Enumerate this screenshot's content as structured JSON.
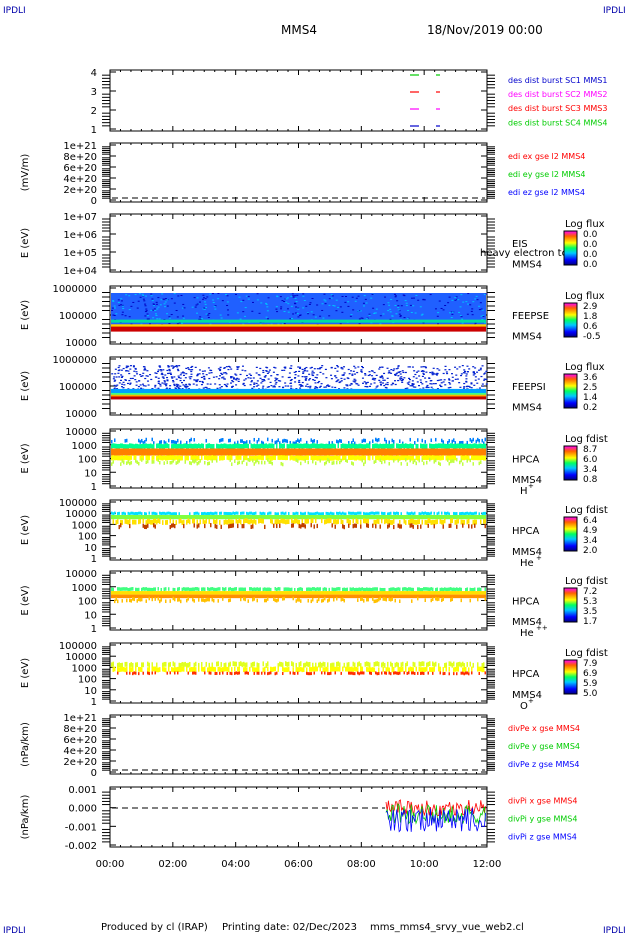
{
  "header": {
    "corner_label": "IPDLI",
    "spacecraft": "MMS4",
    "datetime": "18/Nov/2019 00:00"
  },
  "footer": {
    "produced_by": "Produced by cl (IRAP)",
    "printing_date": "Printing date: 02/Dec/2023",
    "script_name": "mms_mms4_srvy_vue_web2.cl"
  },
  "colors": {
    "mms1": "#0000ff",
    "mms2": "#ff00ff",
    "mms3": "#ff0000",
    "mms4": "#00cc00",
    "x": "#ff0000",
    "y": "#00cc00",
    "z": "#0000ff"
  },
  "chart_data": [
    {
      "type": "line",
      "ylabel": "",
      "yticks": [
        "4",
        "3",
        "2",
        "1"
      ],
      "legend": [
        {
          "name": "des dist burst SC1 MMS1",
          "color": "#0000cc"
        },
        {
          "name": "des dist burst SC2 MMS2",
          "color": "#ff00ff"
        },
        {
          "name": "des dist burst SC3 MMS3",
          "color": "#ff0000"
        },
        {
          "name": "des dist burst SC4 MMS4",
          "color": "#00cc00"
        }
      ]
    },
    {
      "type": "line",
      "ylabel": "(mV/m)",
      "yticks": [
        "1e+21",
        "8e+20",
        "6e+20",
        "4e+20",
        "2e+20",
        "0"
      ],
      "legend": [
        {
          "name": "edi ex gse l2 MMS4",
          "color": "#ff0000"
        },
        {
          "name": "edi ey gse l2 MMS4",
          "color": "#00cc00"
        },
        {
          "name": "edi ez gse l2 MMS4",
          "color": "#0000ff"
        }
      ]
    },
    {
      "type": "heatmap",
      "ylabel": "E (eV)",
      "yticks": [
        "1e+07",
        "1e+06",
        "1e+05",
        "1e+04"
      ],
      "instrument": "EIS",
      "note": "heavy electron to",
      "sc": "MMS4",
      "colorbar_title": "Log flux",
      "colorbar_ticks": [
        "0.0",
        "0.0",
        "0.0",
        "0.0"
      ]
    },
    {
      "type": "heatmap",
      "ylabel": "E (eV)",
      "yticks": [
        "1000000",
        "100000",
        "10000"
      ],
      "instrument": "FEEPSE",
      "sc": "MMS4",
      "colorbar_title": "Log flux",
      "colorbar_ticks": [
        "2.9",
        "1.8",
        "0.6",
        "-0.5"
      ]
    },
    {
      "type": "heatmap",
      "ylabel": "E (eV)",
      "yticks": [
        "1000000",
        "100000",
        "10000"
      ],
      "instrument": "FEEPSI",
      "sc": "MMS4",
      "colorbar_title": "Log flux",
      "colorbar_ticks": [
        "3.6",
        "2.5",
        "1.4",
        "0.2"
      ]
    },
    {
      "type": "heatmap",
      "ylabel": "E (eV)",
      "yticks": [
        "10000",
        "1000",
        "100",
        "10",
        "1"
      ],
      "instrument": "HPCA",
      "sc": "MMS4",
      "species": "H",
      "charge": "+",
      "colorbar_title": "Log fdist",
      "colorbar_ticks": [
        "8.7",
        "6.0",
        "3.4",
        "0.8"
      ]
    },
    {
      "type": "heatmap",
      "ylabel": "E (eV)",
      "yticks": [
        "100000",
        "10000",
        "1000",
        "100",
        "10",
        "1"
      ],
      "instrument": "HPCA",
      "sc": "MMS4",
      "species": "He",
      "charge": "+",
      "colorbar_title": "Log fdist",
      "colorbar_ticks": [
        "6.4",
        "4.9",
        "3.4",
        "2.0"
      ]
    },
    {
      "type": "heatmap",
      "ylabel": "E (eV)",
      "yticks": [
        "10000",
        "1000",
        "100",
        "10",
        "1"
      ],
      "instrument": "HPCA",
      "sc": "MMS4",
      "species": "He",
      "charge": "++",
      "colorbar_title": "Log fdist",
      "colorbar_ticks": [
        "7.2",
        "5.3",
        "3.5",
        "1.7"
      ]
    },
    {
      "type": "heatmap",
      "ylabel": "E (eV)",
      "yticks": [
        "100000",
        "10000",
        "1000",
        "100",
        "10",
        "1"
      ],
      "instrument": "HPCA",
      "sc": "MMS4",
      "species": "O",
      "charge": "+",
      "colorbar_title": "Log fdist",
      "colorbar_ticks": [
        "7.9",
        "6.9",
        "5.9",
        "5.0"
      ]
    },
    {
      "type": "line",
      "ylabel": "(nPa/km)",
      "yticks": [
        "1e+21",
        "8e+20",
        "6e+20",
        "4e+20",
        "2e+20",
        "0"
      ],
      "legend": [
        {
          "name": "divPe x gse MMS4",
          "color": "#ff0000"
        },
        {
          "name": "divPe y gse MMS4",
          "color": "#00cc00"
        },
        {
          "name": "divPe z gse MMS4",
          "color": "#0000ff"
        }
      ]
    },
    {
      "type": "line",
      "ylabel": "(nPa/km)",
      "yticks": [
        "0.001",
        "0.000",
        "-0.001",
        "-0.002"
      ],
      "legend": [
        {
          "name": "divPi x gse MMS4",
          "color": "#ff0000"
        },
        {
          "name": "divPi y gse MMS4",
          "color": "#00cc00"
        },
        {
          "name": "divPi z gse MMS4",
          "color": "#0000ff"
        }
      ]
    }
  ],
  "xaxis": {
    "ticks": [
      "00:00",
      "02:00",
      "04:00",
      "06:00",
      "08:00",
      "10:00",
      "12:00"
    ]
  }
}
